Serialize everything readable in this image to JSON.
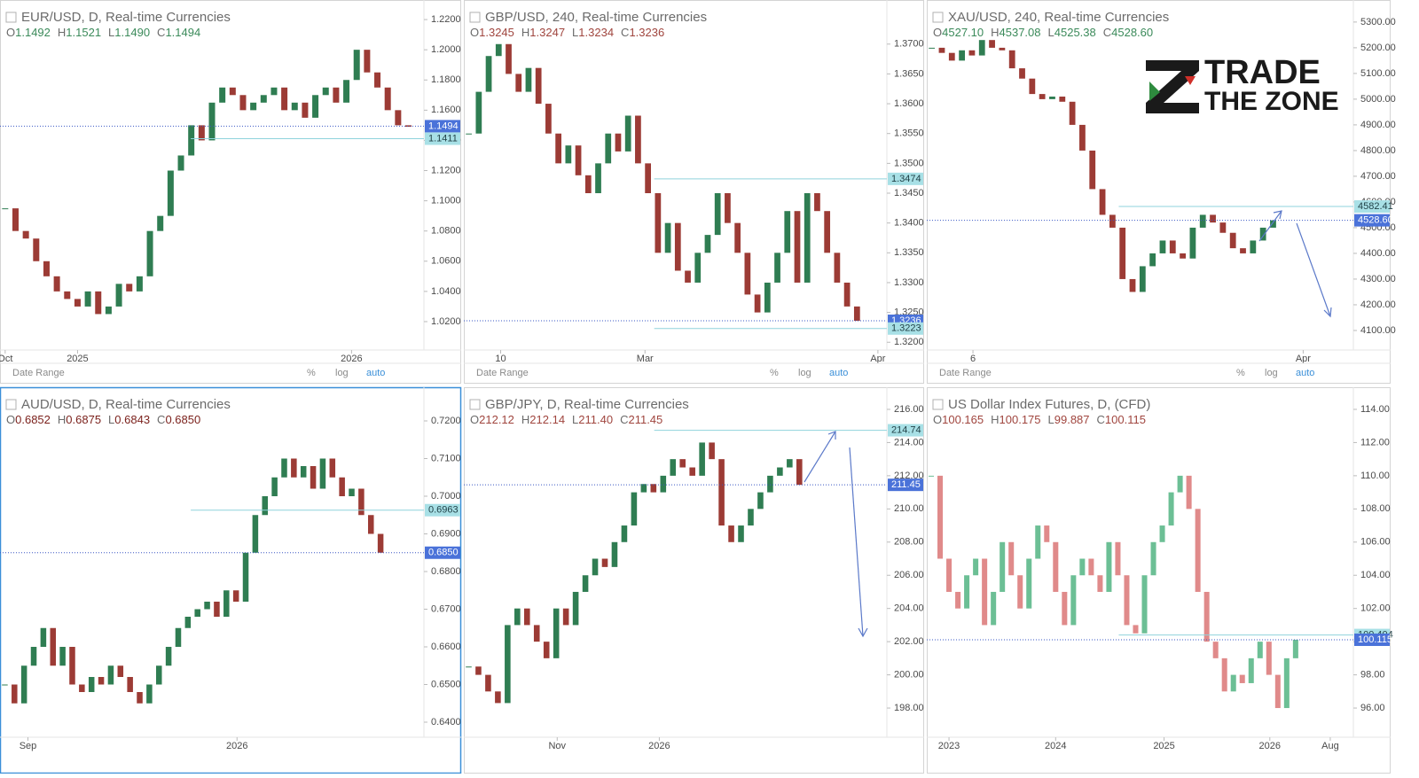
{
  "chart_data": [
    {
      "type": "candlestick",
      "title": "EUR/USD, D, Real-time Currencies",
      "ohlc": [
        {
          "key": "O",
          "value": "1.1492"
        },
        {
          "key": "H",
          "value": "1.1521"
        },
        {
          "key": "L",
          "value": "1.1490"
        },
        {
          "key": "C",
          "value": "1.1494"
        }
      ],
      "ohlc_color": "#3b8a5a",
      "up_color": "#2f7d52",
      "down_color": "#9c3b35",
      "values": [
        1.095,
        1.08,
        1.075,
        1.06,
        1.05,
        1.04,
        1.035,
        1.03,
        1.04,
        1.025,
        1.03,
        1.045,
        1.04,
        1.05,
        1.08,
        1.09,
        1.12,
        1.13,
        1.15,
        1.14,
        1.165,
        1.175,
        1.17,
        1.16,
        1.165,
        1.17,
        1.175,
        1.16,
        1.165,
        1.155,
        1.17,
        1.175,
        1.165,
        1.18,
        1.2,
        1.185,
        1.175,
        1.16,
        1.15,
        1.149
      ],
      "xlim": [
        -0.5,
        40.5
      ],
      "xticks": [
        {
          "value": 0,
          "label": "Oct"
        },
        {
          "value": 7,
          "label": "2025"
        },
        {
          "value": 33.5,
          "label": "2026"
        }
      ],
      "ylim": [
        1.0012,
        1.2306
      ],
      "yticks": [
        {
          "value": 1.02,
          "label": "1.0200"
        },
        {
          "value": 1.04,
          "label": "1.0400"
        },
        {
          "value": 1.06,
          "label": "1.0600"
        },
        {
          "value": 1.08,
          "label": "1.0800"
        },
        {
          "value": 1.1,
          "label": "1.1000"
        },
        {
          "value": 1.12,
          "label": "1.1200"
        },
        {
          "value": 1.14,
          "label": "1.1400"
        },
        {
          "value": 1.16,
          "label": "1.1600"
        },
        {
          "value": 1.18,
          "label": "1.1800"
        },
        {
          "value": 1.2,
          "label": "1.2000"
        },
        {
          "value": 1.22,
          "label": "1.2200"
        }
      ],
      "price_lines": [
        {
          "value": 1.1494,
          "kind": "current"
        },
        {
          "value": 1.1411,
          "kind": "level"
        }
      ]
    },
    {
      "type": "candlestick",
      "title": "GBP/USD, 240, Real-time Currencies",
      "ohlc": [
        {
          "key": "O",
          "value": "1.3245"
        },
        {
          "key": "H",
          "value": "1.3247"
        },
        {
          "key": "L",
          "value": "1.3234"
        },
        {
          "key": "C",
          "value": "1.3236"
        }
      ],
      "ohlc_color": "#a0453e",
      "up_color": "#2f7d52",
      "down_color": "#9c3b35",
      "values": [
        1.355,
        1.362,
        1.368,
        1.37,
        1.365,
        1.362,
        1.366,
        1.36,
        1.355,
        1.35,
        1.353,
        1.348,
        1.345,
        1.35,
        1.355,
        1.352,
        1.358,
        1.35,
        1.345,
        1.335,
        1.34,
        1.332,
        1.33,
        1.335,
        1.338,
        1.345,
        1.34,
        1.335,
        1.328,
        1.325,
        1.33,
        1.335,
        1.342,
        1.33,
        1.345,
        1.342,
        1.335,
        1.33,
        1.326,
        1.3236
      ],
      "xlim": [
        -0.5,
        42
      ],
      "xticks": [
        {
          "value": 3.2,
          "label": "10"
        },
        {
          "value": 17.7,
          "label": "Mar"
        },
        {
          "value": 41.1,
          "label": "Apr"
        }
      ],
      "ylim": [
        1.3187,
        1.3768
      ],
      "yticks": [
        {
          "value": 1.32,
          "label": "1.3200"
        },
        {
          "value": 1.325,
          "label": "1.3250"
        },
        {
          "value": 1.33,
          "label": "1.3300"
        },
        {
          "value": 1.335,
          "label": "1.3350"
        },
        {
          "value": 1.34,
          "label": "1.3400"
        },
        {
          "value": 1.345,
          "label": "1.3450"
        },
        {
          "value": 1.35,
          "label": "1.3500"
        },
        {
          "value": 1.355,
          "label": "1.3550"
        },
        {
          "value": 1.36,
          "label": "1.3600"
        },
        {
          "value": 1.365,
          "label": "1.3650"
        },
        {
          "value": 1.37,
          "label": "1.3700"
        }
      ],
      "price_lines": [
        {
          "value": 1.3474,
          "kind": "level"
        },
        {
          "value": 1.3236,
          "kind": "current"
        },
        {
          "value": 1.3223,
          "kind": "level"
        }
      ]
    },
    {
      "type": "candlestick",
      "title": "XAU/USD, 240, Real-time Currencies",
      "ohlc": [
        {
          "key": "O",
          "value": "4527.10"
        },
        {
          "key": "H",
          "value": "4537.08"
        },
        {
          "key": "L",
          "value": "4525.38"
        },
        {
          "key": "C",
          "value": "4528.60"
        }
      ],
      "ohlc_color": "#3b8a5a",
      "up_color": "#2f7d52",
      "down_color": "#9c3b35",
      "values": [
        5200,
        5180,
        5150,
        5190,
        5170,
        5230,
        5200,
        5190,
        5120,
        5080,
        5020,
        5000,
        5010,
        4990,
        4900,
        4800,
        4650,
        4550,
        4500,
        4300,
        4250,
        4350,
        4400,
        4450,
        4400,
        4380,
        4500,
        4550,
        4520,
        4480,
        4420,
        4400,
        4450,
        4500,
        4528.6
      ],
      "xlim": [
        -0.5,
        42
      ],
      "xticks": [
        {
          "value": 4.1,
          "label": "6"
        },
        {
          "value": 37,
          "label": "Apr"
        }
      ],
      "ylim": [
        4024,
        5372
      ],
      "yticks": [
        {
          "value": 4100,
          "label": "4100.00"
        },
        {
          "value": 4200,
          "label": "4200.00"
        },
        {
          "value": 4300,
          "label": "4300.00"
        },
        {
          "value": 4400,
          "label": "4400.00"
        },
        {
          "value": 4500,
          "label": "4500.00"
        },
        {
          "value": 4600,
          "label": "4600.00"
        },
        {
          "value": 4700,
          "label": "4700.00"
        },
        {
          "value": 4800,
          "label": "4800.00"
        },
        {
          "value": 4900,
          "label": "4900.00"
        },
        {
          "value": 5000,
          "label": "5000.00"
        },
        {
          "value": 5100,
          "label": "5100.00"
        },
        {
          "value": 5200,
          "label": "5200.00"
        },
        {
          "value": 5300,
          "label": "5300.00"
        }
      ],
      "price_lines": [
        {
          "value": 4582.41,
          "kind": "level"
        },
        {
          "value": 4528.6,
          "label": "4528.60",
          "kind": "current"
        }
      ]
    },
    {
      "type": "candlestick",
      "title": "AUD/USD, D, Real-time Currencies",
      "ohlc": [
        {
          "key": "O",
          "value": "0.6852"
        },
        {
          "key": "H",
          "value": "0.6875"
        },
        {
          "key": "L",
          "value": "0.6843"
        },
        {
          "key": "C",
          "value": "0.6850"
        }
      ],
      "ohlc_color": "#7a1f1a",
      "up_color": "#2f7d52",
      "down_color": "#9c3b35",
      "values": [
        0.65,
        0.645,
        0.655,
        0.66,
        0.665,
        0.655,
        0.66,
        0.65,
        0.648,
        0.652,
        0.65,
        0.655,
        0.652,
        0.648,
        0.645,
        0.65,
        0.655,
        0.66,
        0.665,
        0.668,
        0.67,
        0.672,
        0.668,
        0.675,
        0.672,
        0.685,
        0.695,
        0.7,
        0.705,
        0.71,
        0.705,
        0.708,
        0.702,
        0.71,
        0.705,
        0.7,
        0.702,
        0.695,
        0.69,
        0.685
      ],
      "xlim": [
        -0.5,
        43.5
      ],
      "xticks": [
        {
          "value": 2.4,
          "label": "Sep"
        },
        {
          "value": 24.1,
          "label": "2026"
        }
      ],
      "ylim": [
        0.636,
        0.728
      ],
      "yticks": [
        {
          "value": 0.64,
          "label": "0.6400"
        },
        {
          "value": 0.65,
          "label": "0.6500"
        },
        {
          "value": 0.66,
          "label": "0.6600"
        },
        {
          "value": 0.67,
          "label": "0.6700"
        },
        {
          "value": 0.68,
          "label": "0.6800"
        },
        {
          "value": 0.69,
          "label": "0.6900"
        },
        {
          "value": 0.7,
          "label": "0.7000"
        },
        {
          "value": 0.71,
          "label": "0.7100"
        },
        {
          "value": 0.72,
          "label": "0.7200"
        }
      ],
      "price_lines": [
        {
          "value": 0.6963,
          "kind": "level"
        },
        {
          "value": 0.685,
          "label": "0.6850",
          "kind": "current"
        }
      ]
    },
    {
      "type": "candlestick",
      "title": "GBP/JPY, D, Real-time Currencies",
      "ohlc": [
        {
          "key": "O",
          "value": "212.12"
        },
        {
          "key": "H",
          "value": "212.14"
        },
        {
          "key": "L",
          "value": "211.40"
        },
        {
          "key": "C",
          "value": "211.45"
        }
      ],
      "ohlc_color": "#a0453e",
      "up_color": "#2f7d52",
      "down_color": "#9c3b35",
      "values": [
        200.5,
        200,
        199,
        198.3,
        203,
        204,
        203,
        202,
        201,
        204,
        203,
        205,
        206,
        207,
        206.5,
        208,
        209,
        211,
        211.5,
        211,
        212,
        213,
        212.5,
        212,
        214,
        213,
        209,
        208,
        209,
        210,
        211,
        212,
        212.5,
        213,
        211.45
      ],
      "xlim": [
        -0.5,
        43
      ],
      "xticks": [
        {
          "value": 9.1,
          "label": "Nov"
        },
        {
          "value": 19.6,
          "label": "2026"
        }
      ],
      "ylim": [
        196.24,
        217.12
      ],
      "yticks": [
        {
          "value": 198,
          "label": "198.00"
        },
        {
          "value": 200,
          "label": "200.00"
        },
        {
          "value": 202,
          "label": "202.00"
        },
        {
          "value": 204,
          "label": "204.00"
        },
        {
          "value": 206,
          "label": "206.00"
        },
        {
          "value": 208,
          "label": "208.00"
        },
        {
          "value": 210,
          "label": "210.00"
        },
        {
          "value": 212,
          "label": "212.00"
        },
        {
          "value": 214,
          "label": "214.00"
        },
        {
          "value": 216,
          "label": "216.00"
        }
      ],
      "price_lines": [
        {
          "value": 214.74,
          "kind": "level"
        },
        {
          "value": 211.45,
          "kind": "current"
        }
      ]
    },
    {
      "type": "candlestick",
      "title": "US Dollar Index Futures, D, (CFD)",
      "ohlc": [
        {
          "key": "O",
          "value": "100.165"
        },
        {
          "key": "H",
          "value": "100.175"
        },
        {
          "key": "L",
          "value": "99.887"
        },
        {
          "key": "C",
          "value": "100.115"
        }
      ],
      "ohlc_color": "#a0453e",
      "up_color": "#6cbf95",
      "down_color": "#e08a8a",
      "values": [
        110,
        105,
        103,
        102,
        104,
        105,
        101,
        103,
        106,
        104,
        102,
        105,
        107,
        106,
        103,
        101,
        104,
        105,
        104,
        103,
        106,
        104,
        101,
        100.5,
        104,
        106,
        107,
        109,
        110,
        108,
        103,
        100,
        99,
        97,
        98,
        97.5,
        99,
        100,
        98,
        96,
        99,
        100.115
      ],
      "xlim": [
        -0.5,
        47.5
      ],
      "xticks": [
        {
          "value": 2,
          "label": "2023"
        },
        {
          "value": 14,
          "label": "2024"
        },
        {
          "value": 26.2,
          "label": "2025"
        },
        {
          "value": 38.1,
          "label": "2026"
        },
        {
          "value": 44.9,
          "label": "Aug"
        }
      ],
      "ylim": [
        94.24,
        115.12
      ],
      "yticks": [
        {
          "value": 96,
          "label": "96.00"
        },
        {
          "value": 98,
          "label": "98.00"
        },
        {
          "value": 100,
          "label": "100.00"
        },
        {
          "value": 102,
          "label": "102.00"
        },
        {
          "value": 104,
          "label": "104.00"
        },
        {
          "value": 106,
          "label": "106.00"
        },
        {
          "value": 108,
          "label": "108.00"
        },
        {
          "value": 110,
          "label": "110.00"
        },
        {
          "value": 112,
          "label": "112.00"
        },
        {
          "value": 114,
          "label": "114.00"
        }
      ],
      "price_lines": [
        {
          "value": 100.404,
          "kind": "level"
        },
        {
          "value": 100.115,
          "kind": "current"
        }
      ]
    }
  ],
  "toolbar": {
    "date_range": "Date Range",
    "percent": "%",
    "log": "log",
    "auto": "auto"
  },
  "logo": {
    "line1": "TRADE",
    "line2": "THE ZONE"
  }
}
